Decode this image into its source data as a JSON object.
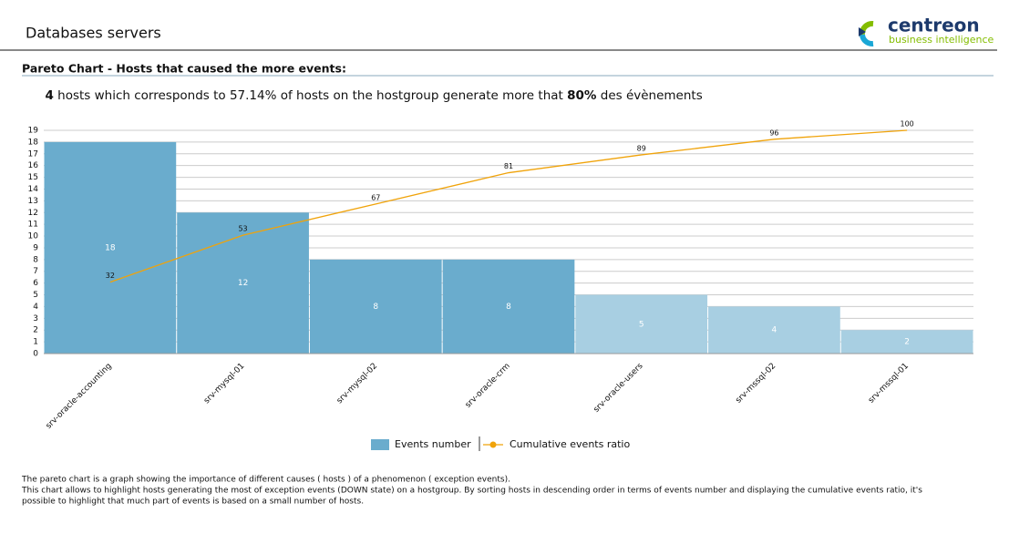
{
  "header": {
    "title": "Databases servers",
    "logo_name": "centreon",
    "logo_tagline": "business intelligence"
  },
  "section_title": "Pareto Chart - Hosts that caused the more events:",
  "summary": [
    "4",
    " hosts which corresponds to 57.14% of hosts on the hostgroup generate more that ",
    "80%",
    " des évènements"
  ],
  "chart_data": {
    "type": "pareto",
    "categories": [
      "srv-oracle-accounting",
      "srv-mysql-01",
      "srv-mysql-02",
      "srv-oracle-crm",
      "srv-oracle-users",
      "srv-mssql-02",
      "srv-mssql-01"
    ],
    "series": [
      {
        "name": "Events number",
        "type": "bar",
        "color": "#6aaccd",
        "colors": [
          "#6aaccd",
          "#6aaccd",
          "#6aaccd",
          "#6aaccd",
          "#a8cfe2",
          "#a8cfe2",
          "#a8cfe2"
        ],
        "values": [
          18,
          12,
          8,
          8,
          5,
          4,
          2
        ]
      },
      {
        "name": "Cumulative events ratio",
        "type": "line",
        "axis": "y2",
        "color": "#f0a30a",
        "values": [
          32,
          53,
          67,
          81,
          89,
          96,
          100
        ]
      }
    ],
    "ylim": [
      0,
      19
    ],
    "yticks": [
      0,
      1,
      2,
      3,
      4,
      5,
      6,
      7,
      8,
      9,
      10,
      11,
      12,
      13,
      14,
      15,
      16,
      17,
      18,
      19
    ],
    "y2lim": [
      0,
      100
    ],
    "grid": true,
    "legend": "bottom"
  },
  "description": [
    "The pareto chart is a graph showing the importance of different causes ( hosts ) of a phenomenon ( exception events).",
    "This chart allows to highlight hosts generating the most of exception events (DOWN state) on a hostgroup. By sorting hosts in descending order in terms of events number and displaying the cumulative events ratio, it's",
    "possible to highlight that much part of events is based on a small number of hosts."
  ]
}
